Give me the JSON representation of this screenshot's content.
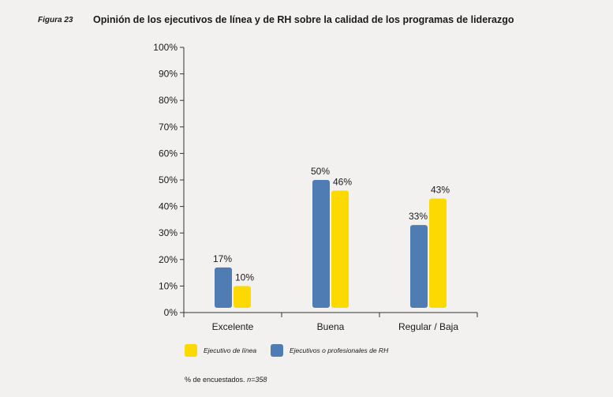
{
  "figure": {
    "label": "Figura 23",
    "title": "Opinión de los ejecutivos de línea y de RH sobre la calidad de los programas de liderazgo"
  },
  "footnote": {
    "text": "% de encuestados.",
    "n": "n=358"
  },
  "chart_data": {
    "type": "bar",
    "title": "Opinión de los ejecutivos de línea y de RH sobre la calidad de los programas de liderazgo",
    "categories": [
      "Excelente",
      "Buena",
      "Regular / Baja"
    ],
    "series": [
      {
        "name": "Ejecutivos o profesionales de RH",
        "color": "#4e7cb3",
        "values": [
          17,
          50,
          33
        ],
        "labels": [
          "17%",
          "50%",
          "33%"
        ]
      },
      {
        "name": "Ejecutivo de línea",
        "color": "#fcd900",
        "values": [
          10,
          46,
          43
        ],
        "labels": [
          "10%",
          "46%",
          "43%"
        ]
      }
    ],
    "legend_order": [
      "Ejecutivo de línea",
      "Ejecutivos o profesionales de RH"
    ],
    "yticks": [
      "0%",
      "10%",
      "20%",
      "30%",
      "40%",
      "50%",
      "60%",
      "70%",
      "80%",
      "90%",
      "100%"
    ],
    "ylim": [
      0,
      100
    ],
    "grid": false,
    "legend_position": "bottom-left"
  }
}
